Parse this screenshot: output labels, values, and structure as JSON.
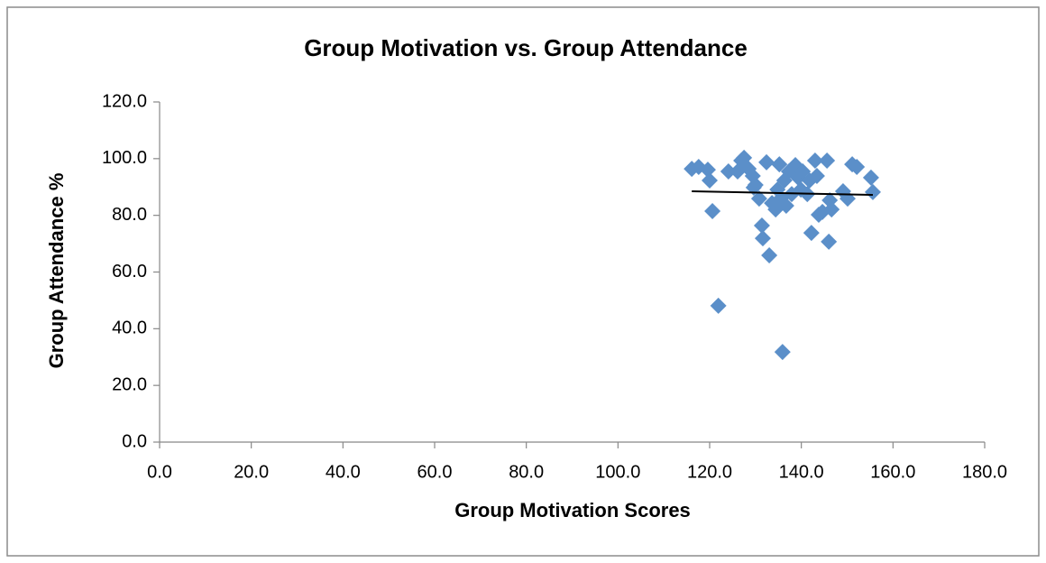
{
  "chart_data": {
    "type": "scatter",
    "title": "Group Motivation vs. Group Attendance",
    "x_label": "Group Motivation Scores",
    "y_label": "Group Attendance %",
    "color": "#5b8fc9",
    "x": [
      116.1,
      117.6,
      119.6,
      120.0,
      120.6,
      121.9,
      124.1,
      126.1,
      126.9,
      127.5,
      128.5,
      129.4,
      130.0,
      130.8,
      131.4,
      131.6,
      132.4,
      133.0,
      133.6,
      134.4,
      135.2,
      134.8,
      135.5,
      135.9,
      136.3,
      137.3,
      137.9,
      138.7,
      139.3,
      139.9,
      140.3,
      141.3,
      141.8,
      142.2,
      143.0,
      143.4,
      143.8,
      144.6,
      145.6,
      146.0,
      146.2,
      146.6,
      149.1,
      150.1,
      151.1,
      152.1,
      155.2,
      155.6,
      129.6,
      136.7
    ],
    "values": [
      96.4,
      97.1,
      96.1,
      92.3,
      81.5,
      48.1,
      95.5,
      95.5,
      99.3,
      100.3,
      96.4,
      93.9,
      90.7,
      85.9,
      76.4,
      71.9,
      98.7,
      65.9,
      84.3,
      82.1,
      98.0,
      89.1,
      85.9,
      31.8,
      92.3,
      95.5,
      87.5,
      97.7,
      93.3,
      89.1,
      95.5,
      87.5,
      92.3,
      73.8,
      99.3,
      93.9,
      80.2,
      81.2,
      99.3,
      70.7,
      85.3,
      82.1,
      88.5,
      85.9,
      98.0,
      97.1,
      93.3,
      88.2,
      89.8,
      83.4
    ],
    "trendline": {
      "x": [
        116.1,
        155.6
      ],
      "y": [
        88.5,
        87.2
      ],
      "color": "#000000"
    },
    "xlim": [
      0,
      180
    ],
    "xticks": [
      {
        "value": 0,
        "label": "0.0"
      },
      {
        "value": 20,
        "label": "20.0"
      },
      {
        "value": 40,
        "label": "40.0"
      },
      {
        "value": 60,
        "label": "60.0"
      },
      {
        "value": 80,
        "label": "80.0"
      },
      {
        "value": 100,
        "label": "100.0"
      },
      {
        "value": 120,
        "label": "120.0"
      },
      {
        "value": 140,
        "label": "140.0"
      },
      {
        "value": 160,
        "label": "160.0"
      },
      {
        "value": 180,
        "label": "180.0"
      }
    ],
    "ylim": [
      0,
      120
    ],
    "yticks": [
      {
        "value": 0,
        "label": "0.0"
      },
      {
        "value": 20,
        "label": "20.0"
      },
      {
        "value": 40,
        "label": "40.0"
      },
      {
        "value": 60,
        "label": "60.0"
      },
      {
        "value": 80,
        "label": "80.0"
      },
      {
        "value": 100,
        "label": "100.0"
      },
      {
        "value": 120,
        "label": "120.0"
      }
    ],
    "grid": false
  }
}
